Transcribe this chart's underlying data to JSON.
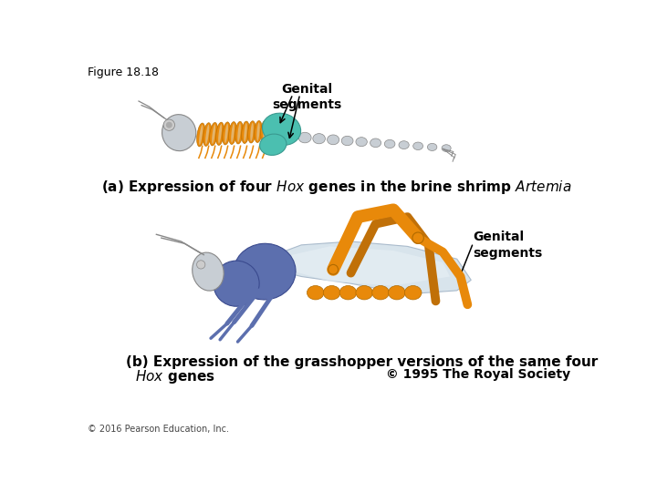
{
  "figure_label": "Figure 18.18",
  "copyright_note": "© 2016 Pearson Education, Inc.",
  "label_genital_a": "Genital\nsegments",
  "label_genital_b": "Genital\nsegments",
  "copyright": "© 1995 The Royal Society",
  "bg_color": "#ffffff",
  "text_color": "#000000",
  "orange": "#E8890A",
  "teal": "#4BBFB0",
  "gray": "#C8CED4",
  "blue": "#5C6FAE",
  "dark_orange": "#b06a00",
  "dark_teal": "#3A9A90",
  "dark_blue": "#3A4A8E",
  "dark_gray": "#888888"
}
